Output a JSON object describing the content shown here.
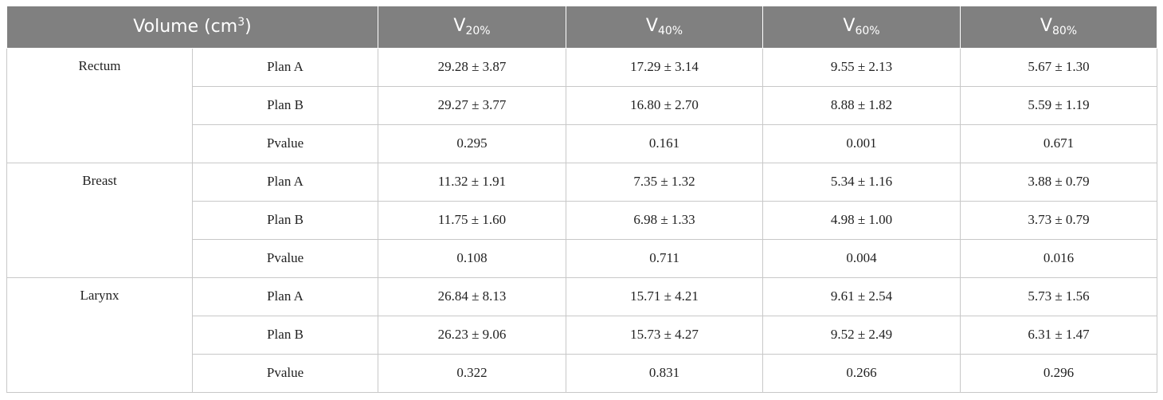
{
  "header": {
    "volume_label": "Volume (cm",
    "volume_unit_sup": "3",
    "volume_label_end": ")",
    "columns": [
      {
        "base": "V",
        "sub": "20%"
      },
      {
        "base": "V",
        "sub": "40%"
      },
      {
        "base": "V",
        "sub": "60%"
      },
      {
        "base": "V",
        "sub": "80%"
      }
    ]
  },
  "groups": [
    {
      "name": "Rectum",
      "rows": [
        {
          "label": "Plan A",
          "values": [
            "29.28 ± 3.87",
            "17.29 ± 3.14",
            "9.55 ± 2.13",
            "5.67 ± 1.30"
          ]
        },
        {
          "label": "Plan B",
          "values": [
            "29.27 ± 3.77",
            "16.80 ± 2.70",
            "8.88 ± 1.82",
            "5.59 ± 1.19"
          ]
        },
        {
          "label": "Pvalue",
          "values": [
            "0.295",
            "0.161",
            "0.001",
            "0.671"
          ]
        }
      ]
    },
    {
      "name": "Breast",
      "rows": [
        {
          "label": "Plan A",
          "values": [
            "11.32 ± 1.91",
            "7.35 ± 1.32",
            "5.34 ± 1.16",
            "3.88 ± 0.79"
          ]
        },
        {
          "label": "Plan B",
          "values": [
            "11.75 ± 1.60",
            "6.98 ± 1.33",
            "4.98 ± 1.00",
            "3.73 ± 0.79"
          ]
        },
        {
          "label": "Pvalue",
          "values": [
            "0.108",
            "0.711",
            "0.004",
            "0.016"
          ]
        }
      ]
    },
    {
      "name": "Larynx",
      "rows": [
        {
          "label": "Plan A",
          "values": [
            "26.84 ± 8.13",
            "15.71 ± 4.21",
            "9.61 ± 2.54",
            "5.73 ± 1.56"
          ]
        },
        {
          "label": "Plan B",
          "values": [
            "26.23 ± 9.06",
            "15.73 ± 4.27",
            "9.52 ± 2.49",
            "6.31 ± 1.47"
          ]
        },
        {
          "label": "Pvalue",
          "values": [
            "0.322",
            "0.831",
            "0.266",
            "0.296"
          ]
        }
      ]
    }
  ]
}
